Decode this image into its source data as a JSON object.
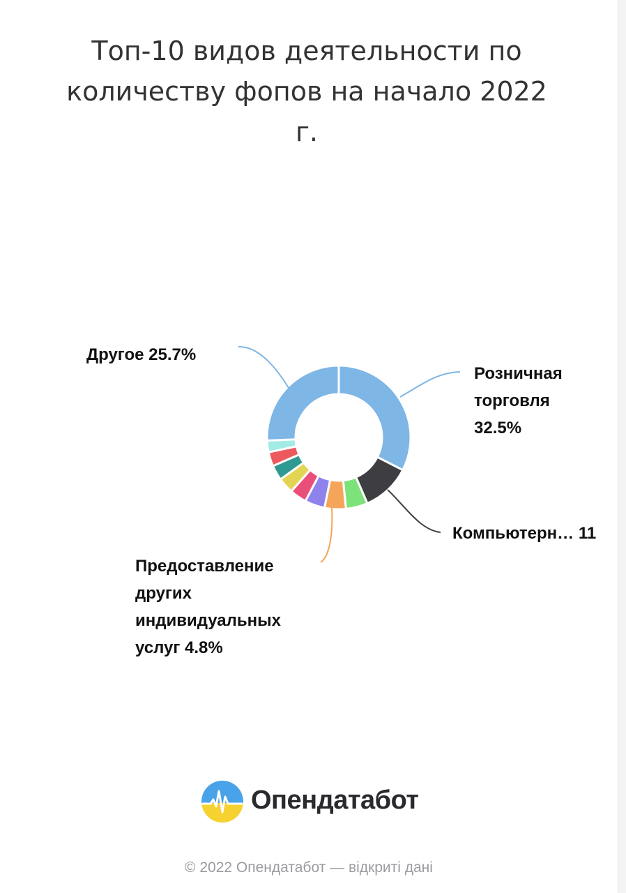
{
  "title": "Топ-10 видов деятельности по количеству фопов на начало 2022 г.",
  "chart_data": {
    "type": "pie",
    "donut": true,
    "title": "Топ-10 видов деятельности по количеству фопов на начало 2022 г.",
    "slices": [
      {
        "label": "Розничная торговля",
        "value": 32.5,
        "color": "#7eb6e6"
      },
      {
        "label": "Компьютерн…",
        "value": 11,
        "color": "#3d3d42"
      },
      {
        "label": "",
        "value": 4.9,
        "color": "#7ee27b"
      },
      {
        "label": "Предоставление других индивидуальных услуг",
        "value": 4.8,
        "color": "#f5a55a"
      },
      {
        "label": "",
        "value": 4.5,
        "color": "#8e83ec"
      },
      {
        "label": "",
        "value": 3.8,
        "color": "#ea4f7a"
      },
      {
        "label": "",
        "value": 3.6,
        "color": "#e4d454"
      },
      {
        "label": "",
        "value": 3.4,
        "color": "#2e9a92"
      },
      {
        "label": "",
        "value": 3.2,
        "color": "#ec5a5f"
      },
      {
        "label": "",
        "value": 2.6,
        "color": "#a3ebe5"
      },
      {
        "label": "Другое",
        "value": 25.7,
        "color": "#7eb6e6"
      }
    ]
  },
  "labels": {
    "other": "Другое 25.7%",
    "retail": "Розничная торговля 32.5%",
    "computer": "Компьютерн… 11",
    "services": "Предоставление других индивидуальных услуг 4.8%"
  },
  "logo": {
    "text": "Опендатабот"
  },
  "footer": "© 2022 Опендатабот — відкриті дані"
}
